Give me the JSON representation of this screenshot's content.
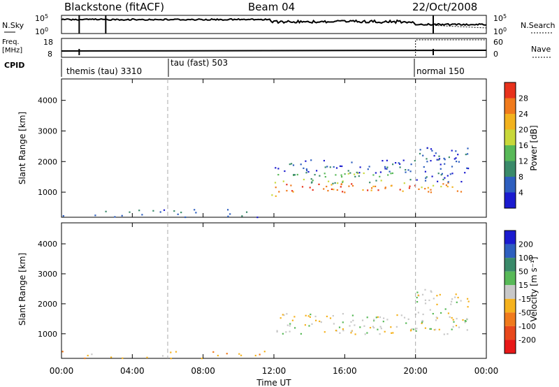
{
  "header": {
    "title": "Blackstone (fitACF)",
    "beam": "Beam 04",
    "date": "22/Oct/2008"
  },
  "status_panels": {
    "nsky": {
      "label": "N.Sky",
      "left_ticks": [
        "10^5",
        "10^0"
      ]
    },
    "nsearch": {
      "label": "N.Search",
      "right_ticks": [
        "10^5",
        "10^0"
      ]
    },
    "freq": {
      "label_line1": "Freq.",
      "label_line2": "[MHz]",
      "left_ticks": [
        "18",
        "8"
      ]
    },
    "nave": {
      "label": "Nave",
      "right_ticks": [
        "60",
        "0"
      ]
    },
    "cpid": {
      "label": "CPID",
      "segments": [
        {
          "name": "themis (tau) 3310",
          "start_hour": 0,
          "end_hour": 6
        },
        {
          "name": "tau (fast) 503",
          "start_hour": 6,
          "end_hour": 20
        },
        {
          "name": "normal 150",
          "start_hour": 20,
          "end_hour": 24
        }
      ]
    }
  },
  "colorbars": {
    "power": {
      "label": "Power [dB]",
      "ticks": [
        "28",
        "24",
        "20",
        "16",
        "12",
        "8",
        "4"
      ]
    },
    "velocity": {
      "label": "Velocity [m s⁻¹]",
      "ticks": [
        "200",
        "100",
        "50",
        "15",
        "-15",
        "-50",
        "-100",
        "-200"
      ]
    }
  },
  "chart_data": [
    {
      "type": "heatmap",
      "panel": "power",
      "ylabel": "Slant Range [km]",
      "xlabel": "Time UT",
      "x_ticks": [
        "00:00",
        "04:00",
        "08:00",
        "12:00",
        "16:00",
        "20:00",
        "00:00"
      ],
      "y_ticks": [
        "1000",
        "2000",
        "3000",
        "4000"
      ],
      "xlim_hours": [
        0,
        24
      ],
      "ylim_km": [
        180,
        4700
      ],
      "colorscale": {
        "levels": [
          0,
          4,
          8,
          12,
          16,
          20,
          24,
          28,
          32
        ],
        "colors": [
          "#1b1bcf",
          "#2e5fbf",
          "#3a8a6a",
          "#58b958",
          "#c8d83a",
          "#f2b21e",
          "#f07a1c",
          "#e8321c"
        ]
      },
      "scatter_regions": [
        {
          "t_start": 0.0,
          "t_end": 11.8,
          "range_min": 180,
          "range_max": 450,
          "typical_power_db": 6
        },
        {
          "t_start": 11.8,
          "t_end": 12.2,
          "range_min": 700,
          "range_max": 1100,
          "typical_power_db": 20
        },
        {
          "t_start": 12.0,
          "t_end": 20.0,
          "range_min": 1000,
          "range_max": 1300,
          "typical_power_db": 26
        },
        {
          "t_start": 12.0,
          "t_end": 20.0,
          "range_min": 1300,
          "range_max": 1650,
          "typical_power_db": 14
        },
        {
          "t_start": 12.0,
          "t_end": 20.0,
          "range_min": 1650,
          "range_max": 2100,
          "typical_power_db": 5
        },
        {
          "t_start": 20.0,
          "t_end": 23.0,
          "range_min": 1000,
          "range_max": 1350,
          "typical_power_db": 24
        },
        {
          "t_start": 20.0,
          "t_end": 23.0,
          "range_min": 1350,
          "range_max": 2500,
          "typical_power_db": 6
        }
      ],
      "vertical_markers_hours": [
        6,
        20
      ]
    },
    {
      "type": "heatmap",
      "panel": "velocity",
      "ylabel": "Slant Range [km]",
      "xlabel": "Time UT",
      "x_ticks": [
        "00:00",
        "04:00",
        "08:00",
        "12:00",
        "16:00",
        "20:00",
        "00:00"
      ],
      "y_ticks": [
        "1000",
        "2000",
        "3000",
        "4000"
      ],
      "xlim_hours": [
        0,
        24
      ],
      "ylim_km": [
        180,
        4700
      ],
      "colorscale": {
        "levels": [
          -250,
          -200,
          -100,
          -50,
          -15,
          15,
          50,
          100,
          200,
          250
        ],
        "colors": [
          "#e81818",
          "#e8481c",
          "#f07a1c",
          "#f5b21e",
          "#c8c8c8",
          "#58b958",
          "#3a8a6a",
          "#2e5fbf",
          "#1b1bcf"
        ]
      },
      "scatter_regions": [
        {
          "t_start": 0.0,
          "t_end": 11.8,
          "range_min": 180,
          "range_max": 450,
          "typical_velocity_ms": -40
        },
        {
          "t_start": 12.0,
          "t_end": 20.0,
          "range_min": 1000,
          "range_max": 1700,
          "typical_velocity_ms": 0
        },
        {
          "t_start": 20.0,
          "t_end": 23.0,
          "range_min": 1000,
          "range_max": 2500,
          "typical_velocity_ms": 0
        }
      ],
      "vertical_markers_hours": [
        6,
        20
      ]
    }
  ]
}
